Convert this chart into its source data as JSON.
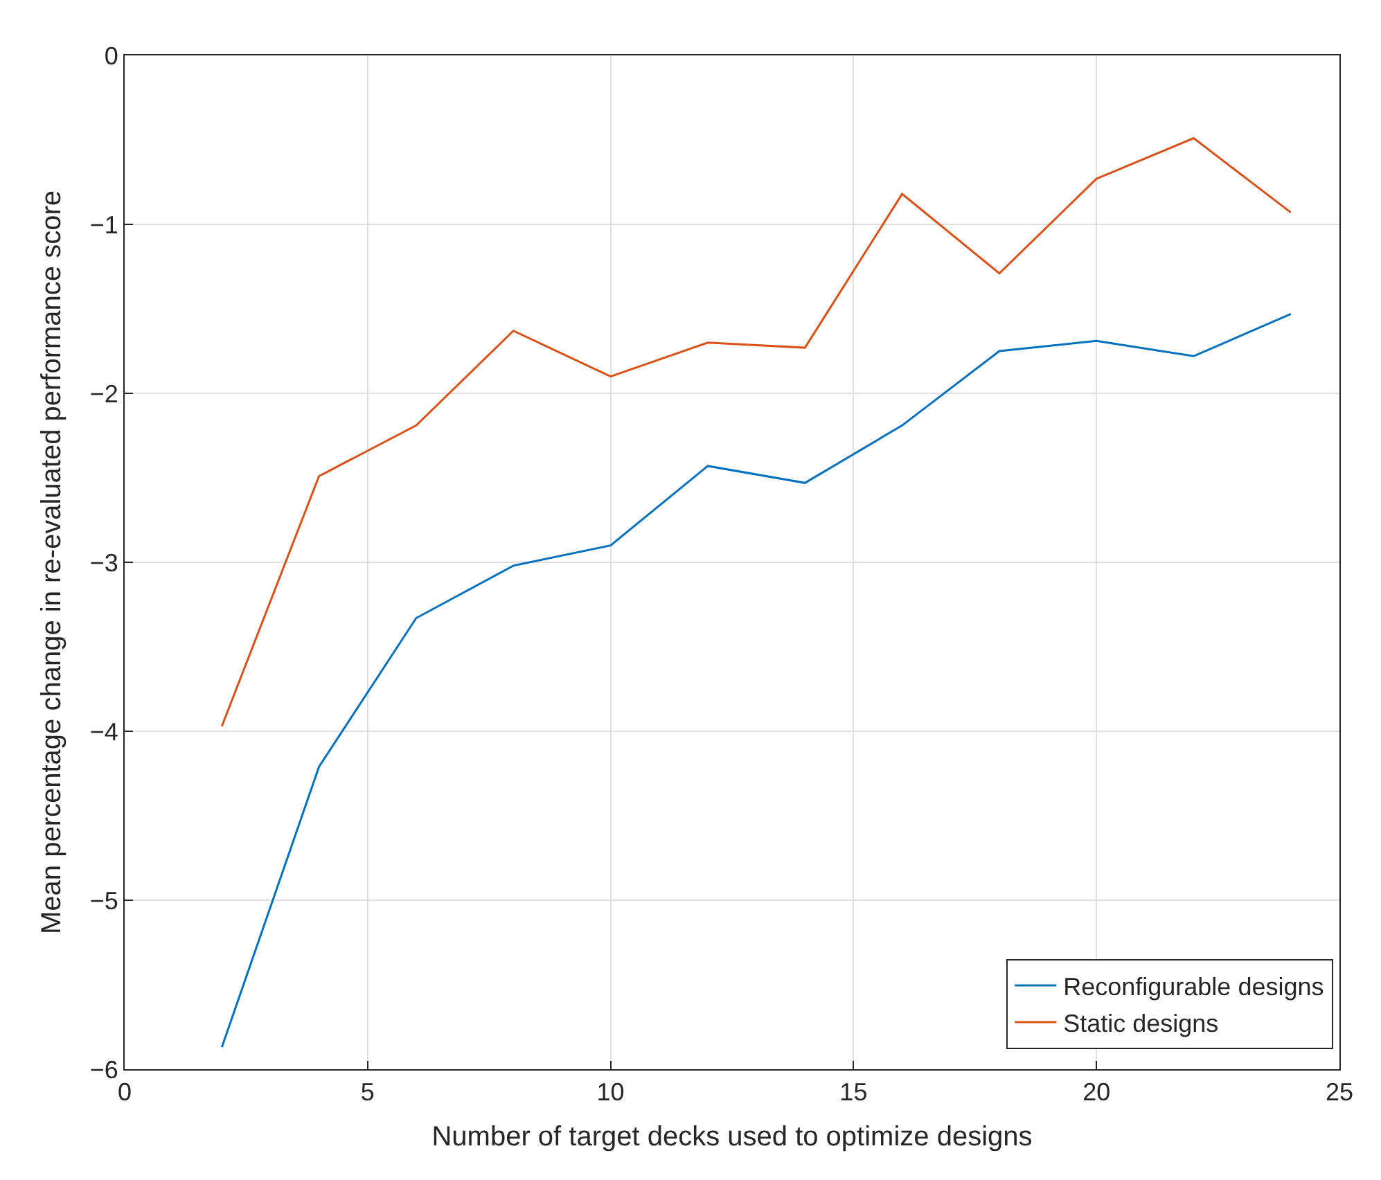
{
  "chart_data": {
    "type": "line",
    "xlabel": "Number of target decks used to optimize designs",
    "ylabel": "Mean percentage change in re-evaluated performance score",
    "x": [
      2,
      4,
      6,
      8,
      10,
      12,
      14,
      16,
      18,
      20,
      22,
      24
    ],
    "series": [
      {
        "name": "Reconfigurable designs",
        "color": "#0072bd",
        "values": [
          -5.87,
          -4.21,
          -3.33,
          -3.02,
          -2.9,
          -2.43,
          -2.53,
          -2.19,
          -1.75,
          -1.69,
          -1.78,
          -1.53
        ]
      },
      {
        "name": "Static designs",
        "color": "#d95319",
        "values": [
          -3.97,
          -2.49,
          -2.19,
          -1.63,
          -1.9,
          -1.7,
          -1.73,
          -0.82,
          -1.29,
          -0.73,
          -0.49,
          -0.93
        ]
      }
    ],
    "xlim": [
      0,
      25
    ],
    "xticks": [
      0,
      5,
      10,
      15,
      20,
      25
    ],
    "ylim": [
      -6,
      0
    ],
    "yticks": [
      -6,
      -5,
      -4,
      -3,
      -2,
      -1,
      0
    ],
    "grid": true,
    "legend": "bottom right",
    "marker": "none",
    "line_style": "solid"
  }
}
